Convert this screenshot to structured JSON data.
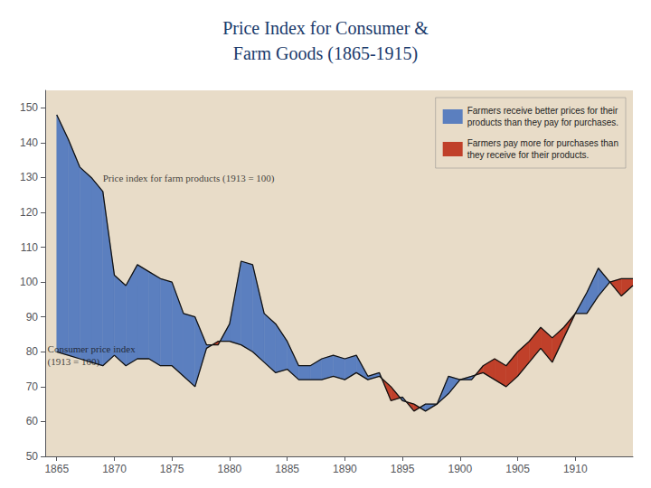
{
  "chart_data": {
    "type": "line",
    "title": "Price Index for Consumer &\nFarm Goods (1865-1915)",
    "title_color": "#1a3a6b",
    "background_color": "#e8dcc8",
    "x": [
      1865,
      1866,
      1867,
      1868,
      1869,
      1870,
      1871,
      1872,
      1873,
      1874,
      1875,
      1876,
      1877,
      1878,
      1879,
      1880,
      1881,
      1882,
      1883,
      1884,
      1885,
      1886,
      1887,
      1888,
      1889,
      1890,
      1891,
      1892,
      1893,
      1894,
      1895,
      1896,
      1897,
      1898,
      1899,
      1900,
      1901,
      1902,
      1903,
      1904,
      1905,
      1906,
      1907,
      1908,
      1909,
      1910,
      1911,
      1912,
      1913,
      1914,
      1915
    ],
    "series": [
      {
        "color": "#111111",
        "values": [
          148,
          141,
          133,
          130,
          126,
          102,
          99,
          105,
          103,
          101,
          100,
          91,
          90,
          82,
          82,
          88,
          106,
          105,
          91,
          88,
          83,
          76,
          76,
          78,
          79,
          78,
          79,
          73,
          74,
          66,
          67,
          63,
          65,
          65,
          73,
          72,
          73,
          74,
          72,
          70,
          73,
          77,
          81,
          77,
          84,
          91,
          97,
          104,
          100,
          96,
          99
        ]
      },
      {
        "color": "#111111",
        "values": [
          80,
          79,
          78,
          77,
          76,
          79,
          76,
          78,
          78,
          76,
          76,
          73,
          70,
          81,
          83,
          83,
          82,
          80,
          77,
          74,
          75,
          72,
          72,
          72,
          73,
          72,
          74,
          72,
          73,
          70,
          66,
          65,
          63,
          65,
          68,
          72,
          72,
          76,
          78,
          76,
          80,
          83,
          87,
          84,
          87,
          91,
          91,
          96,
          100,
          101,
          101
        ]
      }
    ],
    "fills": [
      {
        "name": "Farmers receive better prices for their\nproducts than they pay for purchases.",
        "color": "#5b7fbf"
      },
      {
        "name": "Farmers pay more for purchases than\nthey receive for their products.",
        "color": "#c0402a"
      }
    ],
    "annotations": [
      {
        "text": "Price index for farm products (1913 = 100)",
        "x": 1869,
        "y": 128
      },
      {
        "text": "Consumer price index\n(1913 = 100)",
        "x": 1864.2,
        "y": 79
      }
    ],
    "xlim": [
      1864,
      1915
    ],
    "xticks": [
      1865,
      1870,
      1875,
      1880,
      1885,
      1890,
      1895,
      1900,
      1905,
      1910
    ],
    "ylim": [
      50,
      155
    ],
    "yticks": [
      50,
      60,
      70,
      80,
      90,
      100,
      110,
      120,
      130,
      140,
      150
    ],
    "grid": false,
    "legend": "upper right"
  }
}
